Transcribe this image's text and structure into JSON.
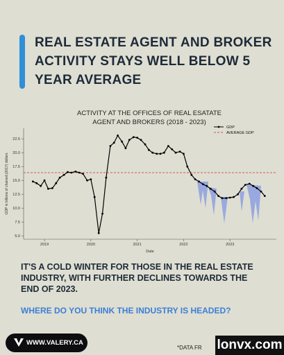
{
  "title": "REAL ESTATE AGENT AND BROKER ACTIVITY STAYS WELL BELOW 5 YEAR AVERAGE",
  "chart_data": {
    "type": "line",
    "title": "ACTIVITY AT THE OFFICES OF REAL ESATATE AGENT AND BROKERS (2018 - 2023)",
    "x_label": "Date",
    "y_label": "GDP in billions of chained (2017) dollars",
    "x": [
      2018.75,
      2018.83,
      2018.92,
      2019.0,
      2019.08,
      2019.17,
      2019.25,
      2019.33,
      2019.42,
      2019.5,
      2019.58,
      2019.67,
      2019.75,
      2019.83,
      2019.92,
      2020.0,
      2020.08,
      2020.17,
      2020.25,
      2020.33,
      2020.42,
      2020.5,
      2020.58,
      2020.67,
      2020.75,
      2020.83,
      2020.92,
      2021.0,
      2021.08,
      2021.17,
      2021.25,
      2021.33,
      2021.42,
      2021.5,
      2021.58,
      2021.67,
      2021.75,
      2021.83,
      2021.92,
      2022.0,
      2022.08,
      2022.17,
      2022.25,
      2022.33,
      2022.42,
      2022.5,
      2022.58,
      2022.67,
      2022.75,
      2022.83,
      2022.92,
      2023.0,
      2023.08,
      2023.17,
      2023.25,
      2023.33,
      2023.42,
      2023.5,
      2023.58,
      2023.67,
      2023.75
    ],
    "series": [
      {
        "name": "GDP",
        "color": "#000000",
        "values": [
          14.8,
          14.5,
          14.0,
          15.0,
          13.5,
          13.6,
          14.5,
          15.5,
          16.0,
          16.5,
          16.4,
          16.6,
          16.4,
          16.2,
          15.0,
          15.2,
          12.0,
          5.5,
          9.0,
          15.5,
          21.2,
          21.8,
          23.1,
          22.0,
          20.8,
          22.3,
          22.8,
          22.7,
          22.3,
          21.5,
          20.5,
          20.0,
          19.8,
          19.8,
          20.0,
          21.2,
          20.6,
          20.0,
          20.2,
          19.8,
          17.5,
          16.0,
          15.2,
          14.8,
          14.3,
          14.0,
          13.5,
          13.0,
          12.2,
          11.8,
          11.8,
          11.9,
          12.0,
          12.5,
          13.5,
          14.2,
          14.4,
          14.0,
          13.6,
          13.0,
          12.2
        ]
      }
    ],
    "reference_line": {
      "name": "AVERAGE GDP",
      "value": 16.4,
      "color": "#d62728"
    },
    "xlim": [
      2018.55,
      2024.0
    ],
    "xticks": [
      2019,
      2020,
      2021,
      2022,
      2023
    ],
    "ylim": [
      4.4,
      24.4
    ],
    "yticks": [
      {
        "value": 5,
        "label": "5.0"
      },
      {
        "value": 7.5,
        "label": "7.5"
      },
      {
        "value": 10,
        "label": "10.0"
      },
      {
        "value": 12.5,
        "label": "12.5"
      },
      {
        "value": 15,
        "label": "15.0"
      },
      {
        "value": 17.5,
        "label": "17.5"
      },
      {
        "value": 20,
        "label": "20.0"
      },
      {
        "value": 22.5,
        "label": "22.5"
      }
    ],
    "legend": "upper right"
  },
  "body": "IT'S A COLD WINTER FOR THOSE IN THE REAL ESTATE INDUSTRY, WITH FURTHER DECLINES TOWARDS THE END OF 2023.",
  "question": "WHERE DO YOU THINK THE INDUSTRY IS HEADED?",
  "badge": "WWW.VALERY.CA",
  "footnote": "*DATA FR",
  "watermark": "lonvx.com"
}
